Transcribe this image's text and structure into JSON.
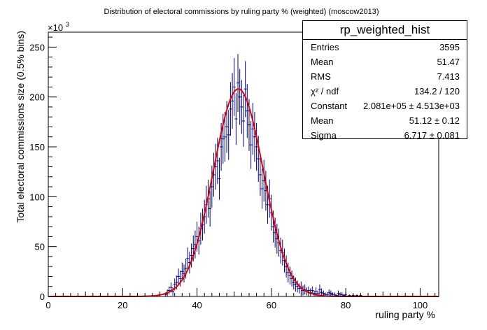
{
  "chart_data": {
    "type": "histogram",
    "title": "Distribution of electoral commissions by ruling party % (weighted) (moscow2013)",
    "xlabel": "ruling party %",
    "ylabel": "Total electoral commissions size (0.5% bins)",
    "y_exponent_label": "×10",
    "y_exponent_power": "3",
    "xlim": [
      0,
      105
    ],
    "ylim": [
      0,
      265
    ],
    "x_ticks": [
      0,
      20,
      40,
      60,
      80,
      100
    ],
    "x_tick_labels": [
      "0",
      "20",
      "40",
      "60",
      "80",
      "100"
    ],
    "y_ticks": [
      0,
      50,
      100,
      150,
      200,
      250
    ],
    "y_tick_labels": [
      "0",
      "50",
      "100",
      "150",
      "200",
      "250"
    ],
    "grid": false,
    "colors": {
      "histogram": "#00008b",
      "fit": "#e00000"
    },
    "fit": {
      "function": "gaus",
      "constant": 208.1,
      "mean": 51.12,
      "sigma": 6.717
    },
    "histogram": {
      "x": [
        31.5,
        32,
        32.5,
        33,
        33.5,
        34,
        34.5,
        35,
        35.5,
        36,
        36.5,
        37,
        37.5,
        38,
        38.5,
        39,
        39.5,
        40,
        40.5,
        41,
        41.5,
        42,
        42.5,
        43,
        43.5,
        44,
        44.5,
        45,
        45.5,
        46,
        46.5,
        47,
        47.5,
        48,
        48.5,
        49,
        49.5,
        50,
        50.5,
        51,
        51.5,
        52,
        52.5,
        53,
        53.5,
        54,
        54.5,
        55,
        55.5,
        56,
        56.5,
        57,
        57.5,
        58,
        58.5,
        59,
        59.5,
        60,
        60.5,
        61,
        61.5,
        62,
        62.5,
        63,
        63.5,
        64,
        64.5,
        65,
        65.5,
        66,
        66.5,
        67,
        67.5,
        68,
        68.5,
        69,
        69.5,
        70,
        70.5,
        71,
        71.5,
        72,
        72.5,
        73,
        73.5,
        74,
        74.5,
        75,
        75.5,
        76,
        76.5,
        77,
        77.5,
        78,
        78.5,
        79,
        79.5,
        80,
        81,
        82,
        83,
        84
      ],
      "y": [
        2,
        4,
        6,
        9,
        5,
        12,
        14,
        20,
        18,
        25,
        23,
        28,
        38,
        34,
        41,
        48,
        52,
        60,
        56,
        68,
        72,
        80,
        92,
        98,
        88,
        110,
        122,
        130,
        136,
        118,
        150,
        158,
        160,
        170,
        162,
        188,
        196,
        210,
        178,
        214,
        200,
        190,
        176,
        208,
        186,
        172,
        152,
        168,
        160,
        150,
        138,
        122,
        108,
        116,
        106,
        92,
        98,
        84,
        70,
        64,
        58,
        54,
        46,
        44,
        36,
        30,
        24,
        21,
        18,
        14,
        12,
        10,
        8,
        9,
        6,
        7,
        5,
        6,
        4,
        6,
        3,
        5,
        3,
        7,
        4,
        3,
        2,
        2,
        4,
        3,
        2,
        2,
        1,
        3,
        2,
        2,
        1,
        2,
        1,
        1,
        1,
        1
      ],
      "errors": [
        2,
        3,
        4,
        5,
        4,
        6,
        7,
        8,
        8,
        9,
        9,
        10,
        11,
        11,
        12,
        13,
        14,
        15,
        14,
        16,
        16,
        17,
        19,
        19,
        18,
        21,
        22,
        23,
        23,
        21,
        24,
        25,
        25,
        26,
        25,
        27,
        28,
        29,
        26,
        29,
        28,
        27,
        26,
        28,
        27,
        26,
        24,
        26,
        25,
        24,
        23,
        21,
        20,
        21,
        20,
        19,
        19,
        18,
        16,
        15,
        15,
        14,
        13,
        13,
        12,
        11,
        10,
        9,
        8,
        7,
        7,
        6,
        5,
        6,
        5,
        5,
        4,
        4,
        4,
        4,
        3,
        4,
        3,
        5,
        4,
        3,
        2,
        2,
        3,
        3,
        2,
        2,
        1,
        3,
        2,
        2,
        1,
        2,
        1,
        1,
        1,
        1
      ]
    }
  },
  "stats": {
    "title": "rp_weighted_hist",
    "rows": [
      {
        "label": "Entries",
        "value": "3595"
      },
      {
        "label": "Mean",
        "value": "51.47"
      },
      {
        "label": "RMS",
        "value": "7.413"
      },
      {
        "label": "χ² / ndf",
        "value": "134.2 / 120"
      },
      {
        "label": "Constant",
        "value": "2.081e+05  ± 4.513e+03"
      },
      {
        "label": "Mean",
        "value": "51.12 ± 0.12"
      },
      {
        "label": "Sigma",
        "value": "6.717 ± 0.081"
      }
    ]
  }
}
